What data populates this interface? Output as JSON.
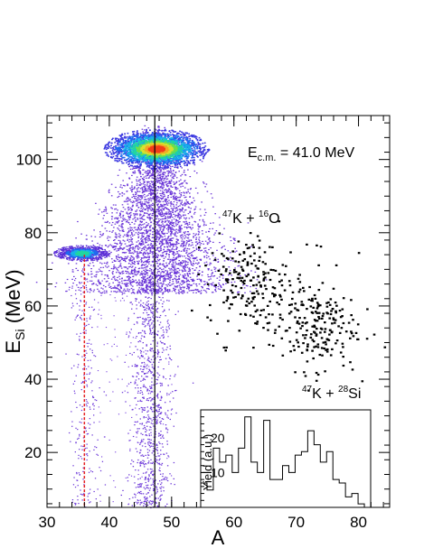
{
  "chart_data": {
    "type": "scatter",
    "xlabel": "A",
    "ylabel_main": "E",
    "ylabel_sub": "Si",
    "ylabel_unit": " (MeV)",
    "xlim": [
      30,
      85
    ],
    "ylim": [
      5,
      112
    ],
    "x_ticks": [
      30,
      40,
      50,
      60,
      70,
      80
    ],
    "y_ticks": [
      20,
      40,
      60,
      80,
      100
    ],
    "annotations": {
      "energy_main": "E",
      "energy_sub": "c.m.",
      "energy_value": " = 41.0 MeV",
      "reaction_o_mass": "47",
      "reaction_o_mid": "K + ",
      "reaction_o_mass2": "16",
      "reaction_o_elem": "O",
      "reaction_si_mass": "47",
      "reaction_si_mid": "K + ",
      "reaction_si_mass2": "28",
      "reaction_si_elem": "Si"
    },
    "reference_lines": [
      {
        "x": 47.3,
        "style": "solid",
        "color": "#000000"
      },
      {
        "x": 36.0,
        "style": "dashed",
        "color": "#e41a1c"
      }
    ],
    "clusters": [
      {
        "center": [
          47.5,
          103.5
        ],
        "peak_density": "high"
      },
      {
        "center": [
          35.5,
          74.5
        ],
        "peak_density": "medium"
      }
    ],
    "inset": {
      "type": "histogram",
      "ylabel": "Yield (a.u.)",
      "xlim": [
        55,
        82
      ],
      "ylim": [
        0,
        28
      ],
      "y_ticks": [
        10,
        20
      ],
      "bin_edges": [
        55,
        56,
        57,
        58,
        59,
        60,
        61,
        62,
        63,
        64,
        65,
        66,
        67,
        68,
        69,
        70,
        71,
        72,
        73,
        74,
        75,
        76,
        77,
        78,
        79,
        80,
        81,
        82
      ],
      "counts": [
        7,
        5,
        17,
        13,
        15,
        10,
        17,
        26,
        13,
        10,
        25,
        8,
        8,
        12,
        10,
        15,
        16,
        22,
        18,
        13,
        16,
        8,
        7,
        3,
        4,
        1,
        0
      ]
    }
  }
}
